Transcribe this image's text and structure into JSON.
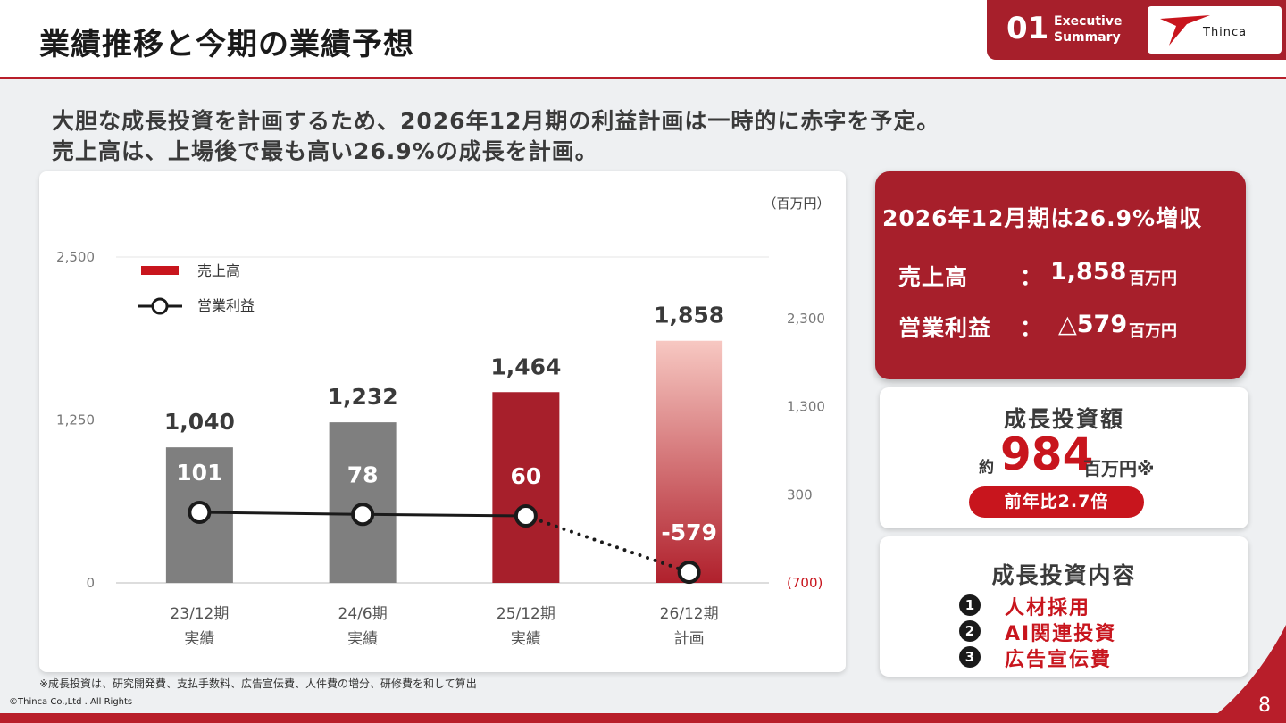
{
  "header": {
    "title": "業績推移と今期の業績予想",
    "section_number": "01",
    "section_name_line1": "Executive",
    "section_name_line2": "Summary",
    "logo_text": "Thinca"
  },
  "headline": {
    "line1": "大胆な成長投資を計画するため、2026年12月期の利益計画は一時的に赤字を予定。",
    "line2": "売上高は、上場後で最も高い26.9%の成長を計画。"
  },
  "chart_data": {
    "type": "bar",
    "unit_label": "（百万円）",
    "categories": [
      "23/12期",
      "24/6期",
      "25/12期",
      "26/12期"
    ],
    "category_sublabels": [
      "実績",
      "実績",
      "実績",
      "計画"
    ],
    "series": [
      {
        "name": "売上高",
        "type": "bar",
        "axis": "left",
        "values": [
          1040,
          1232,
          1464,
          1858
        ],
        "labels": [
          "1,040",
          "1,232",
          "1,464",
          "1,858"
        ],
        "colors": [
          "#7f7f7f",
          "#7f7f7f",
          "#a71f2b",
          "gradient"
        ],
        "gradient_top": "#f7c8c2",
        "gradient_bottom": "#b0202c"
      },
      {
        "name": "営業利益",
        "type": "line",
        "axis": "right",
        "values": [
          101,
          78,
          60,
          -579
        ],
        "labels": [
          "101",
          "78",
          "60",
          "-579"
        ],
        "last_segment_dotted": true
      }
    ],
    "ylim_left": [
      0,
      2500
    ],
    "left_ticks": [
      "0",
      "1,250",
      "2,500"
    ],
    "left_tick_values": [
      0,
      1250,
      2500
    ],
    "ylim_right": [
      -700,
      3000
    ],
    "right_ticks": [
      "(700)",
      "300",
      "1,300",
      "2,300"
    ],
    "right_tick_values": [
      -700,
      300,
      1300,
      2300
    ],
    "grid": true,
    "legend_position": "top-left"
  },
  "kpi": {
    "title": "2026年12月期は26.9%増収",
    "sales_label": "売上高",
    "sales_value": "1,858",
    "profit_label": "営業利益",
    "profit_value": "△579",
    "colon": "：",
    "unit": "百万円"
  },
  "investment": {
    "title": "成長投資額",
    "approx": "約",
    "amount": "984",
    "unit": "百万円※",
    "yoy": "前年比2.7倍"
  },
  "investment_content": {
    "title": "成長投資内容",
    "items": [
      {
        "num": "1",
        "label": "人材採用"
      },
      {
        "num": "2",
        "label": "AI関連投資"
      },
      {
        "num": "3",
        "label": "広告宣伝費"
      }
    ]
  },
  "footnote": "※成長投資は、研究開発費、支払手数料、広告宣伝費、人件費の増分、研修費を和して算出",
  "copyright": "©Thinca Co.,Ltd . All Rights",
  "page_number": "8"
}
